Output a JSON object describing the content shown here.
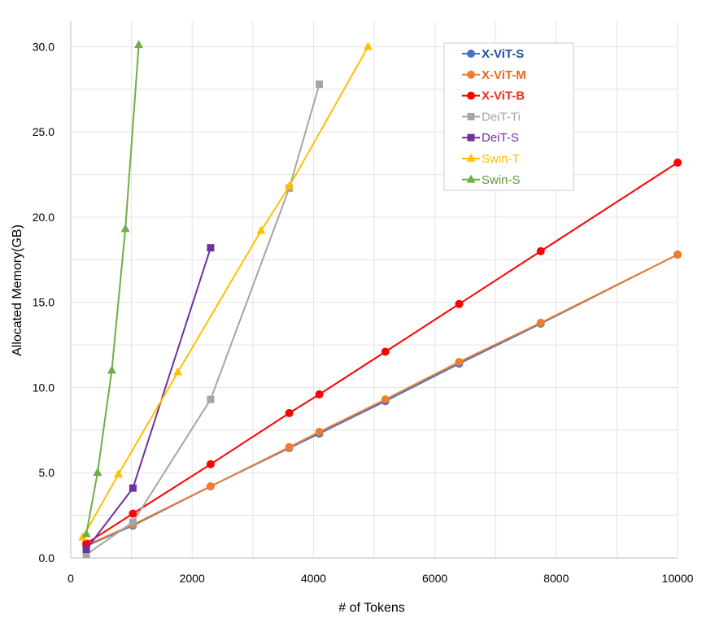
{
  "chart_data": {
    "type": "line",
    "title": "",
    "xlabel": "# of Tokens",
    "ylabel": "Allocated Memory(GB)",
    "xlim": [
      0,
      10000
    ],
    "ylim": [
      0,
      31.5
    ],
    "x_ticks": [
      0,
      2000,
      4000,
      6000,
      8000,
      10000
    ],
    "x_tick_labels": [
      "0",
      "2000",
      "4000",
      "6000",
      "8000",
      "10000"
    ],
    "y_ticks": [
      0,
      5,
      10,
      15,
      20,
      25,
      30
    ],
    "y_tick_labels": [
      "0.0",
      "5.0",
      "10.0",
      "15.0",
      "20.0",
      "25.0",
      "30.0"
    ],
    "grid": true,
    "legend_position": "top-right",
    "series": [
      {
        "name": "X-ViT-S",
        "color": "#4472C4",
        "label_color": "#1F4E9E",
        "marker": "circle",
        "points": [
          [
            256,
            0.7
          ],
          [
            1024,
            1.9
          ],
          [
            2304,
            4.2
          ],
          [
            3600,
            6.45
          ],
          [
            4096,
            7.3
          ],
          [
            5184,
            9.2
          ],
          [
            6400,
            11.4
          ],
          [
            7744,
            13.75
          ],
          [
            10000,
            17.8
          ]
        ]
      },
      {
        "name": "X-ViT-M",
        "color": "#ED7D31",
        "label_color": "#E06A1B",
        "marker": "circle",
        "points": [
          [
            256,
            0.75
          ],
          [
            1024,
            1.95
          ],
          [
            2304,
            4.2
          ],
          [
            3600,
            6.5
          ],
          [
            4096,
            7.4
          ],
          [
            5184,
            9.3
          ],
          [
            6400,
            11.5
          ],
          [
            7744,
            13.8
          ],
          [
            10000,
            17.8
          ]
        ]
      },
      {
        "name": "X-ViT-B",
        "color": "#FF0000",
        "label_color": "#F02C17",
        "marker": "circle",
        "points": [
          [
            256,
            0.85
          ],
          [
            1024,
            2.6
          ],
          [
            2304,
            5.5
          ],
          [
            3600,
            8.5
          ],
          [
            4096,
            9.6
          ],
          [
            5184,
            12.1
          ],
          [
            6400,
            14.9
          ],
          [
            7744,
            18.0
          ],
          [
            10000,
            23.2
          ]
        ]
      },
      {
        "name": "DeiT-Ti",
        "color": "#A5A5A5",
        "label_color": "#A5A5A5",
        "marker": "square",
        "points": [
          [
            256,
            0.2
          ],
          [
            1024,
            2.1
          ],
          [
            2304,
            9.3
          ],
          [
            3600,
            21.7
          ],
          [
            4096,
            27.8
          ]
        ]
      },
      {
        "name": "DeiT-S",
        "color": "#7030A0",
        "label_color": "#7030A0",
        "marker": "square",
        "points": [
          [
            256,
            0.5
          ],
          [
            1024,
            4.1
          ],
          [
            2304,
            18.2
          ]
        ]
      },
      {
        "name": "Swin-T",
        "color": "#FFC000",
        "label_color": "#FFC000",
        "marker": "triangle",
        "points": [
          [
            196,
            1.2
          ],
          [
            784,
            4.9
          ],
          [
            1764,
            10.9
          ],
          [
            3136,
            19.2
          ],
          [
            3600,
            21.8
          ],
          [
            4900,
            30.0
          ]
        ]
      },
      {
        "name": "Swin-S",
        "color": "#70AD47",
        "label_color": "#5F9A36",
        "marker": "triangle",
        "points": [
          [
            256,
            1.4
          ],
          [
            441,
            5.0
          ],
          [
            676,
            11.0
          ],
          [
            900,
            19.3
          ],
          [
            1120,
            30.1
          ]
        ]
      }
    ]
  }
}
